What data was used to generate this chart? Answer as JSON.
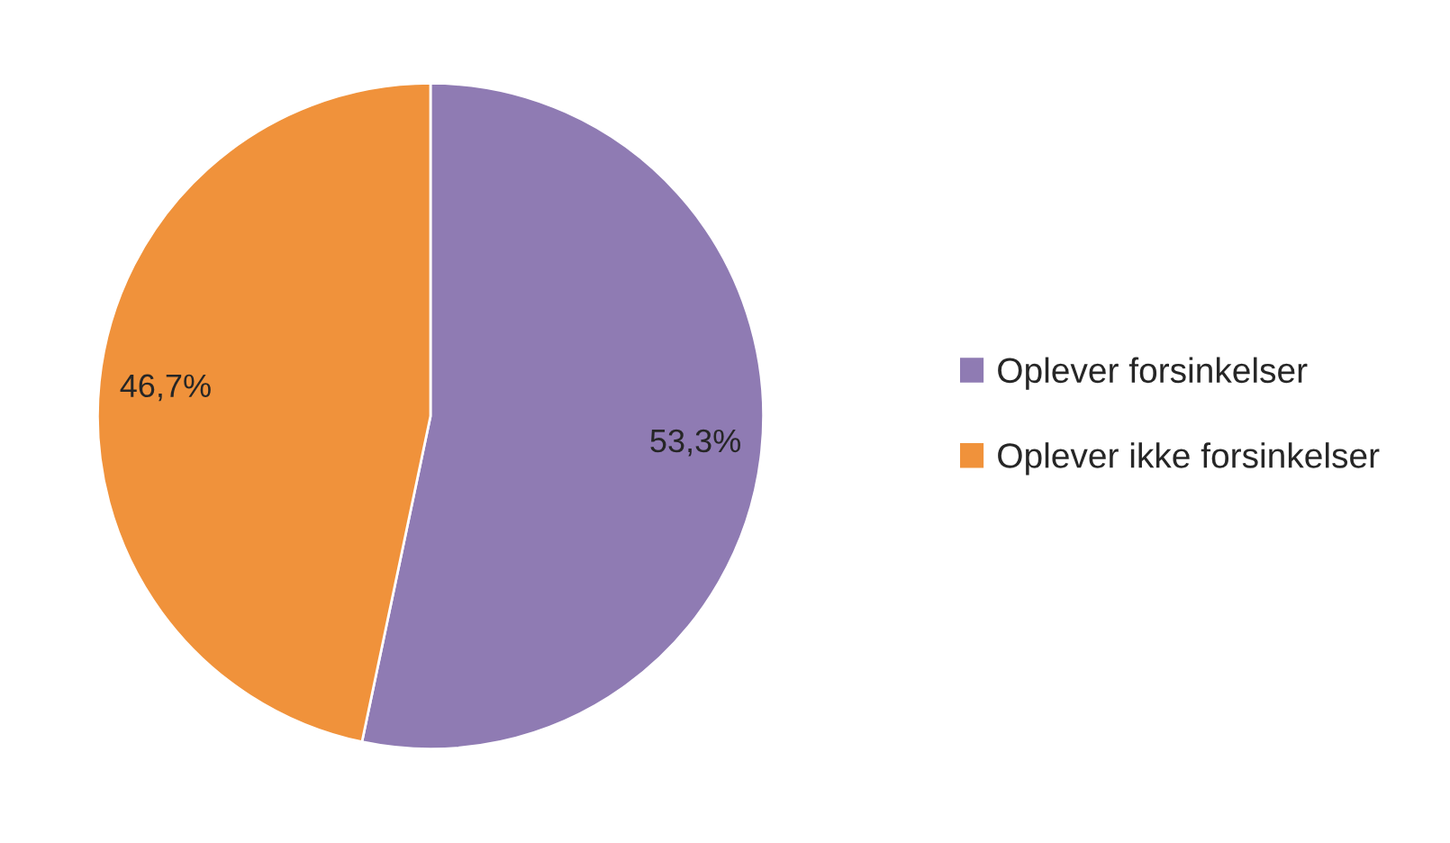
{
  "chart_data": {
    "type": "pie",
    "categories": [
      "Oplever forsinkelser",
      "Oplever ikke forsinkelser"
    ],
    "values": [
      53.3,
      46.7
    ],
    "colors": [
      "#8f7bb3",
      "#f0923b"
    ],
    "value_labels": [
      "53,3%",
      "46,7%"
    ],
    "legend": "right"
  }
}
